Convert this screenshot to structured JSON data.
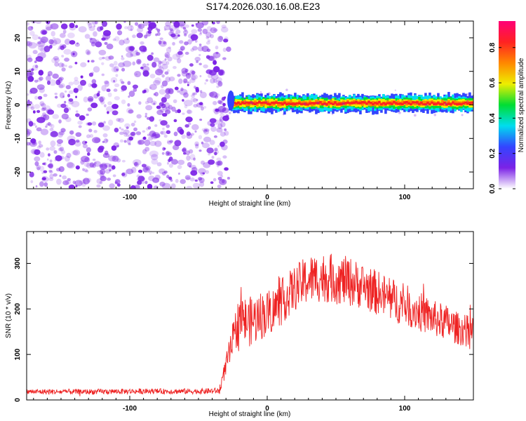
{
  "title": "S174.2026.030.16.08.E23",
  "colors": {
    "snr_line": "#ee2222",
    "noise_purple": "#7b22e6",
    "axes": "#000000",
    "background": "#ffffff"
  },
  "chart_data": [
    {
      "type": "heatmap",
      "xlabel": "Height of straight line (km)",
      "ylabel": "Frequency (Hz)",
      "xlim": [
        -175,
        150
      ],
      "ylim": [
        -25,
        25
      ],
      "xticks": [
        -100,
        0,
        100
      ],
      "xtick_labels": [
        "-100",
        "0",
        "100"
      ],
      "yticks": [
        -20,
        -10,
        0,
        10,
        20
      ],
      "ytick_labels": [
        "-20",
        "-10",
        "0",
        "10",
        "20"
      ],
      "regions": [
        {
          "name": "noise",
          "x_range": [
            -175,
            -28
          ],
          "f_range": [
            -25,
            25
          ],
          "amplitude": [
            0.0,
            0.25
          ]
        },
        {
          "name": "signal",
          "x_range": [
            -28,
            150
          ],
          "f_center": 0.5,
          "f_halfwidth": [
            2.0,
            1.0
          ],
          "amplitude": [
            0.3,
            1.0
          ]
        }
      ],
      "colorbar": {
        "label": "Normalized spectral amplitude",
        "range": [
          0,
          0.95
        ],
        "ticks": [
          0.0,
          0.2,
          0.4,
          0.6,
          0.8
        ],
        "tick_labels": [
          "0.0",
          "0.2",
          "0.4",
          "0.6",
          "0.8"
        ],
        "colormap": [
          "#ffffff",
          "#7b22e6",
          "#3344ff",
          "#00ddee",
          "#00dd33",
          "#eeee00",
          "#ff8800",
          "#ff2222",
          "#ff0077"
        ]
      },
      "grid": false
    },
    {
      "type": "line",
      "xlabel": "Height of straight line (km)",
      "ylabel": "SNR (10 * v/v)",
      "xlim": [
        -175,
        150
      ],
      "ylim": [
        0,
        370
      ],
      "xticks": [
        -100,
        0,
        100
      ],
      "xtick_labels": [
        "-100",
        "0",
        "100"
      ],
      "yticks": [
        0,
        100,
        200,
        300
      ],
      "ytick_labels": [
        "0",
        "100",
        "200",
        "300"
      ],
      "series": [
        {
          "x": [
            -175,
            -150,
            -125,
            -100,
            -75,
            -50,
            -35,
            -20,
            -15,
            -10,
            -5,
            0,
            5,
            10,
            20,
            30,
            40,
            50,
            60,
            70,
            80,
            90,
            100,
            110,
            120,
            130,
            140,
            150
          ],
          "y": [
            18,
            18,
            18,
            19,
            19,
            19,
            20,
            185,
            170,
            175,
            185,
            190,
            200,
            215,
            245,
            265,
            270,
            265,
            260,
            250,
            235,
            220,
            210,
            195,
            180,
            170,
            155,
            150
          ],
          "spread": [
            6,
            6,
            6,
            6,
            6,
            6,
            7,
            55,
            55,
            55,
            55,
            50,
            50,
            50,
            50,
            55,
            55,
            55,
            55,
            50,
            50,
            50,
            45,
            45,
            40,
            40,
            35,
            35
          ]
        }
      ],
      "grid": false
    }
  ]
}
